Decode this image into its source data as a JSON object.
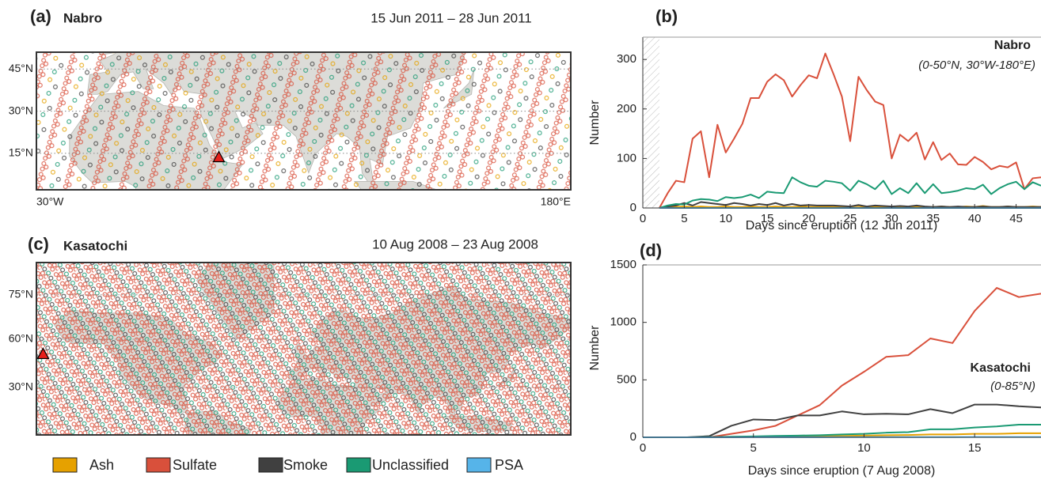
{
  "chart_data": [
    {
      "type": "map",
      "panel": "(a)",
      "title": "Nabro",
      "date_range": "15 Jun 2011 – 28 Jun 2011",
      "projection": "equirectangular",
      "xlim": [
        -30,
        180
      ],
      "ylim": [
        2,
        51
      ],
      "xticks": [
        {
          "value": -30,
          "label": "30°W"
        },
        {
          "value": 180,
          "label": "180°E"
        }
      ],
      "yticks": [
        {
          "value": 45,
          "label": "45°N"
        },
        {
          "value": 30,
          "label": "30°N"
        },
        {
          "value": 15,
          "label": "15°N"
        }
      ],
      "volcano": {
        "lon": 41.7,
        "lat": 13.4
      },
      "grid": true
    },
    {
      "type": "line",
      "panel": "(b)",
      "title": "Nabro",
      "subtitle": "(0-50°N, 30°W-180°E)",
      "xlabel": "Days since eruption (12 Jun 2011)",
      "ylabel": "Number",
      "x": [
        2,
        3,
        4,
        5,
        6,
        7,
        8,
        9,
        10,
        11,
        12,
        13,
        14,
        15,
        16,
        17,
        18,
        19,
        20,
        21,
        22,
        23,
        24,
        25,
        26,
        27,
        28,
        29,
        30,
        31,
        32,
        33,
        34,
        35,
        36,
        37,
        38,
        39,
        40,
        41,
        42,
        43,
        44,
        45,
        46,
        47,
        48
      ],
      "series": [
        {
          "name": "Ash",
          "color": "#e6a100",
          "values": [
            0,
            1,
            2,
            3,
            2,
            3,
            2,
            2,
            3,
            2,
            2,
            3,
            2,
            2,
            3,
            2,
            2,
            3,
            2,
            2,
            3,
            2,
            2,
            3,
            4,
            2,
            3,
            2,
            2,
            3,
            2,
            3,
            2,
            2,
            3,
            2,
            2,
            3,
            2,
            4,
            2,
            2,
            3,
            2,
            2,
            3,
            2
          ]
        },
        {
          "name": "Sulfate",
          "color": "#d9503b",
          "values": [
            0,
            30,
            55,
            52,
            140,
            155,
            62,
            168,
            112,
            140,
            170,
            222,
            222,
            255,
            270,
            258,
            225,
            248,
            268,
            262,
            312,
            270,
            225,
            135,
            265,
            238,
            215,
            208,
            100,
            148,
            135,
            152,
            98,
            133,
            97,
            110,
            88,
            87,
            103,
            93,
            78,
            85,
            82,
            92,
            38,
            60,
            62
          ]
        },
        {
          "name": "Smoke",
          "color": "#404040",
          "values": [
            0,
            3,
            5,
            10,
            5,
            12,
            10,
            8,
            6,
            10,
            8,
            5,
            8,
            6,
            10,
            5,
            8,
            5,
            6,
            5,
            5,
            5,
            4,
            3,
            6,
            3,
            5,
            4,
            3,
            4,
            3,
            5,
            3,
            2,
            3,
            2,
            3,
            2,
            2,
            3,
            2,
            2,
            3,
            2,
            2,
            2,
            2
          ]
        },
        {
          "name": "Unclassified",
          "color": "#1a9a73",
          "values": [
            0,
            5,
            8,
            7,
            15,
            18,
            17,
            14,
            22,
            20,
            22,
            27,
            20,
            33,
            31,
            30,
            62,
            52,
            45,
            43,
            55,
            53,
            50,
            35,
            55,
            48,
            38,
            55,
            28,
            40,
            30,
            50,
            30,
            48,
            30,
            32,
            35,
            40,
            38,
            47,
            28,
            40,
            48,
            53,
            38,
            52,
            45
          ]
        },
        {
          "name": "PSA",
          "color": "#56b4e9",
          "values": [
            0,
            0,
            0,
            0,
            0,
            0,
            0,
            0,
            0,
            0,
            0,
            0,
            0,
            0,
            0,
            0,
            0,
            0,
            0,
            0,
            0,
            0,
            0,
            0,
            0,
            0,
            0,
            0,
            0,
            0,
            0,
            0,
            0,
            0,
            0,
            0,
            0,
            0,
            0,
            0,
            0,
            0,
            0,
            0,
            0,
            0,
            0
          ]
        }
      ],
      "xlim": [
        0,
        48
      ],
      "ylim": [
        0,
        345
      ],
      "xticks": [
        0,
        5,
        10,
        15,
        20,
        25,
        30,
        35,
        40,
        45
      ],
      "yticks": [
        0,
        100,
        200,
        300
      ],
      "shaded_xrange": [
        0,
        2
      ]
    },
    {
      "type": "map",
      "panel": "(c)",
      "title": "Kasatochi",
      "date_range": "10 Aug 2008 – 23 Aug 2008",
      "projection": "mercator",
      "xlim": [
        -180,
        180
      ],
      "ylim": [
        -12,
        81
      ],
      "yticks": [
        {
          "value": 75,
          "label": "75°N"
        },
        {
          "value": 60,
          "label": "60°N"
        },
        {
          "value": 30,
          "label": "30°N"
        }
      ],
      "volcano": {
        "lon": -175.5,
        "lat": 52.2
      },
      "grid": true
    },
    {
      "type": "line",
      "panel": "(d)",
      "title": "Kasatochi",
      "subtitle": "(0-85°N)",
      "xlabel": "Days since eruption (7 Aug 2008)",
      "ylabel": "Number",
      "x": [
        0,
        1,
        2,
        3,
        4,
        5,
        6,
        7,
        8,
        9,
        10,
        11,
        12,
        13,
        14,
        15,
        16,
        17,
        18
      ],
      "series": [
        {
          "name": "Ash",
          "color": "#e6a100",
          "values": [
            0,
            0,
            0,
            1,
            2,
            4,
            5,
            8,
            10,
            12,
            15,
            18,
            20,
            25,
            25,
            30,
            30,
            35,
            35
          ]
        },
        {
          "name": "Sulfate",
          "color": "#d9503b",
          "values": [
            0,
            0,
            0,
            0,
            30,
            60,
            100,
            190,
            280,
            450,
            570,
            700,
            715,
            860,
            820,
            1100,
            1300,
            1220,
            1250
          ]
        },
        {
          "name": "Smoke",
          "color": "#404040",
          "values": [
            0,
            0,
            0,
            10,
            100,
            155,
            150,
            190,
            190,
            225,
            200,
            205,
            200,
            245,
            210,
            285,
            285,
            270,
            260
          ]
        },
        {
          "name": "Unclassified",
          "color": "#1a9a73",
          "values": [
            0,
            0,
            0,
            2,
            5,
            8,
            12,
            15,
            18,
            25,
            30,
            40,
            45,
            70,
            70,
            85,
            95,
            110,
            110
          ]
        },
        {
          "name": "PSA",
          "color": "#56b4e9",
          "values": [
            0,
            0,
            0,
            0,
            0,
            1,
            1,
            1,
            1,
            2,
            2,
            2,
            2,
            2,
            2,
            3,
            3,
            3,
            3
          ]
        }
      ],
      "xlim": [
        0,
        18
      ],
      "ylim": [
        0,
        1500
      ],
      "xticks": [
        0,
        5,
        10,
        15
      ],
      "yticks": [
        0,
        500,
        1000,
        1500
      ]
    }
  ]
}
